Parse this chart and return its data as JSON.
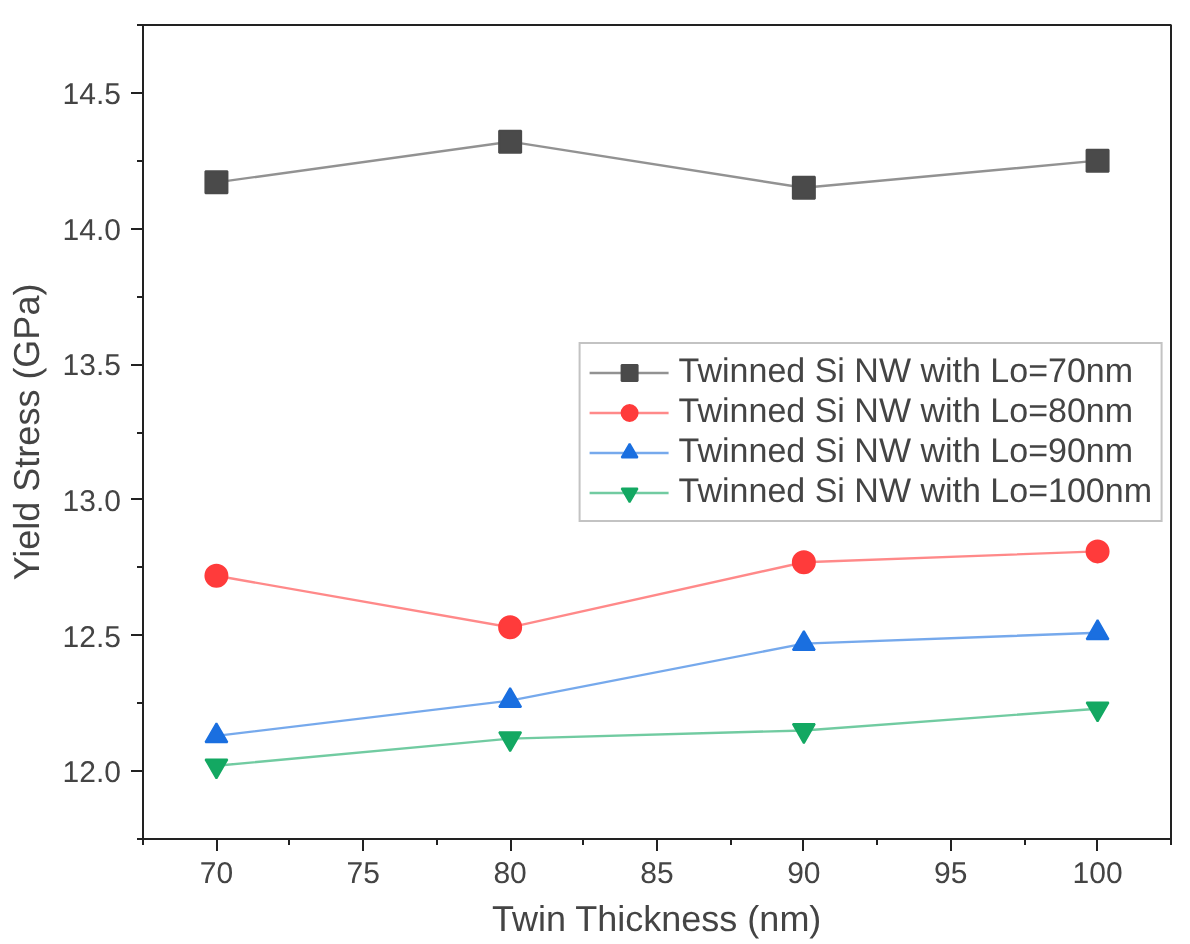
{
  "chart_data": {
    "type": "line",
    "xlabel": "Twin Thickness (nm)",
    "ylabel": "Yield Stress (GPa)",
    "x": [
      70,
      80,
      90,
      100
    ],
    "series": [
      {
        "name": "Twinned Si NW with Lo=70nm",
        "color": "#4a4a4a",
        "marker": "square",
        "values": [
          14.17,
          14.32,
          14.15,
          14.25
        ]
      },
      {
        "name": "Twinned Si NW with Lo=80nm",
        "color": "#ff3b3b",
        "marker": "circle",
        "values": [
          12.72,
          12.53,
          12.77,
          12.81
        ]
      },
      {
        "name": "Twinned Si NW with Lo=90nm",
        "color": "#1a6fe0",
        "marker": "triangle",
        "values": [
          12.13,
          12.26,
          12.47,
          12.51
        ]
      },
      {
        "name": "Twinned Si NW with Lo=100nm",
        "color": "#13a862",
        "marker": "triangle",
        "values": [
          12.02,
          12.12,
          12.15,
          12.23
        ]
      }
    ],
    "xlim": [
      67.5,
      102.5
    ],
    "ylim": [
      11.75,
      14.75
    ],
    "xticks": [
      70,
      75,
      80,
      85,
      90,
      95,
      100
    ],
    "yticks": [
      {
        "value": 12,
        "label": "12.0"
      },
      {
        "value": 12.5,
        "label": "12.5"
      },
      {
        "value": 13,
        "label": "13.0"
      },
      {
        "value": 13.5,
        "label": "13.5"
      },
      {
        "value": 14,
        "label": "14.0"
      },
      {
        "value": 14.5,
        "label": "14.5"
      }
    ],
    "grid": false,
    "legend": "right",
    "line_style": "solid"
  }
}
